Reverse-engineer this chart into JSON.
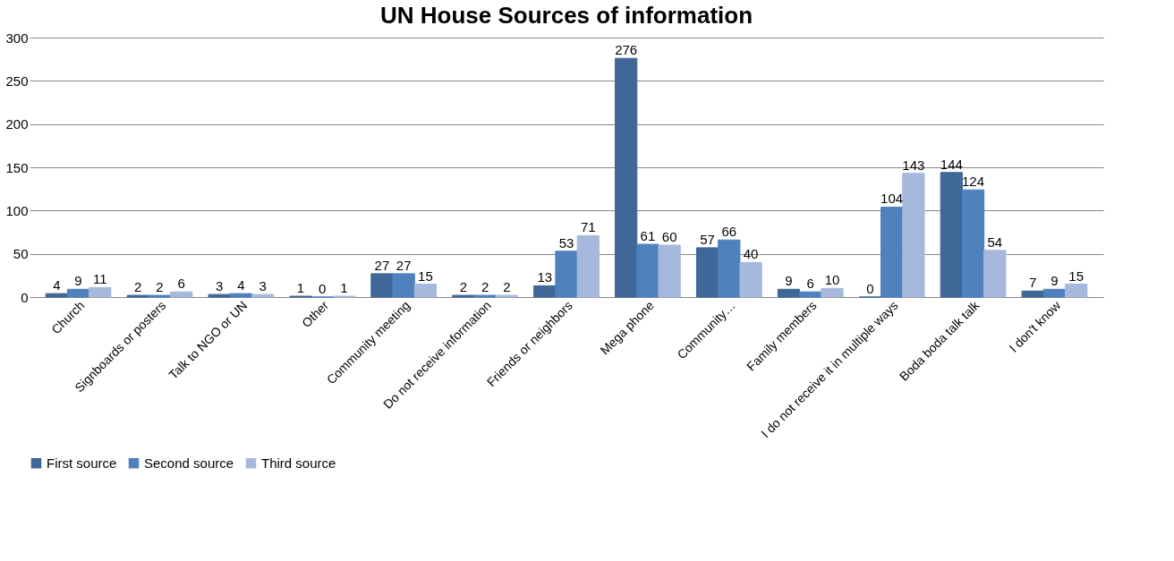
{
  "chart_data": {
    "type": "bar",
    "title": "UN House Sources of information",
    "categories": [
      "Church",
      "Signboards or posters",
      "Talk to NGO or UN",
      "Other",
      "Community meeting",
      "Do not receive information",
      "Friends or neighbors",
      "Mega phone",
      "Community…",
      "Family members",
      "I do not receive it in multiple ways",
      "Boda boda talk talk",
      "I don't know"
    ],
    "series": [
      {
        "name": "First source",
        "color": "#3f6797",
        "values": [
          4,
          2,
          3,
          1,
          27,
          2,
          13,
          276,
          57,
          9,
          0,
          144,
          7
        ]
      },
      {
        "name": "Second source",
        "color": "#4f81bd",
        "values": [
          9,
          2,
          4,
          0,
          27,
          2,
          53,
          61,
          66,
          6,
          104,
          124,
          9
        ]
      },
      {
        "name": "Third source",
        "color": "#a6b9dc",
        "values": [
          11,
          6,
          3,
          1,
          15,
          2,
          71,
          60,
          40,
          10,
          143,
          54,
          15
        ]
      }
    ],
    "ylim": [
      0,
      300
    ],
    "yticks": [
      0,
      50,
      100,
      150,
      200,
      250,
      300
    ],
    "grid": "y",
    "legend": "bottom",
    "data_labels": true
  }
}
